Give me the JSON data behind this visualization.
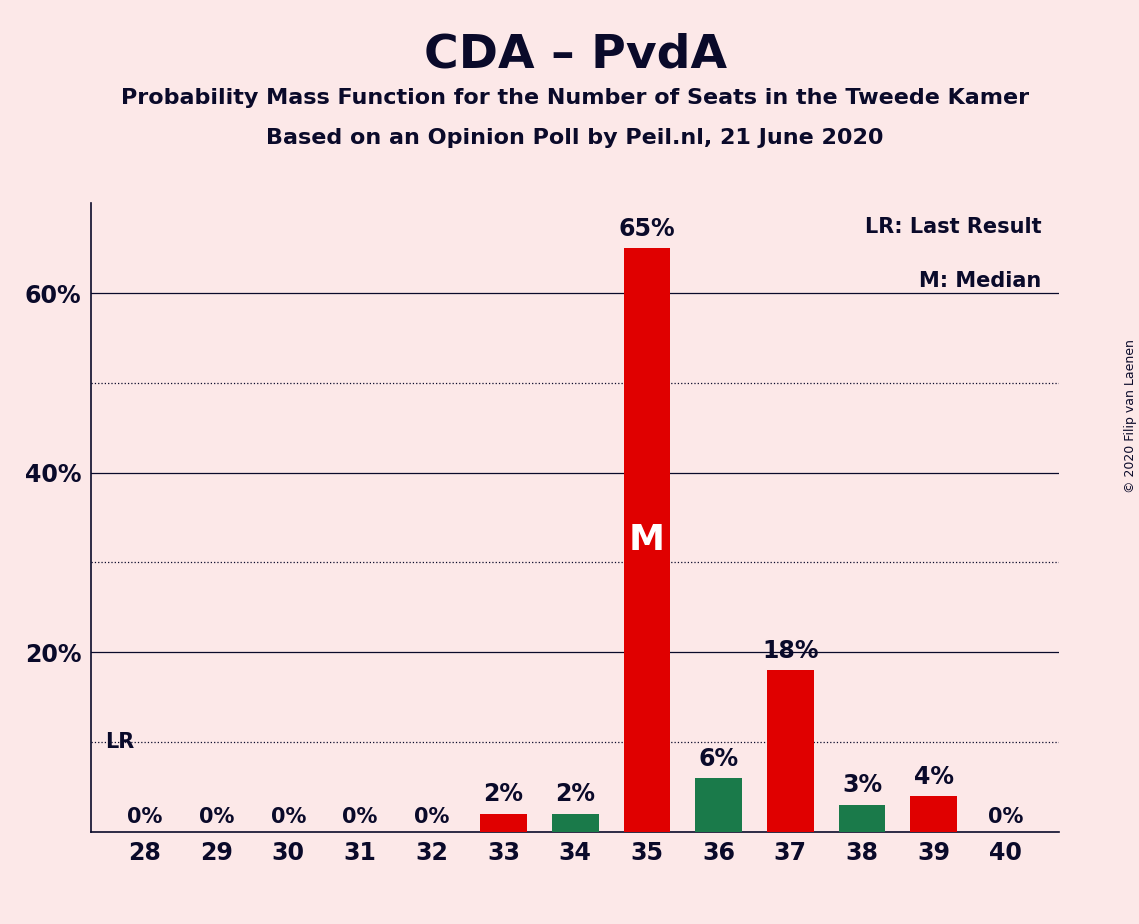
{
  "title": "CDA – PvdA",
  "subtitle1": "Probability Mass Function for the Number of Seats in the Tweede Kamer",
  "subtitle2": "Based on an Opinion Poll by Peil.nl, 21 June 2020",
  "copyright": "© 2020 Filip van Laenen",
  "background_color": "#fce8e8",
  "categories": [
    28,
    29,
    30,
    31,
    32,
    33,
    34,
    35,
    36,
    37,
    38,
    39,
    40
  ],
  "values": [
    0,
    0,
    0,
    0,
    0,
    2,
    2,
    65,
    6,
    18,
    3,
    4,
    0
  ],
  "bar_colors": [
    "#e00000",
    "#e00000",
    "#e00000",
    "#e00000",
    "#e00000",
    "#e00000",
    "#1a7a4a",
    "#e00000",
    "#1a7a4a",
    "#e00000",
    "#1a7a4a",
    "#e00000",
    "#e00000"
  ],
  "median_bar": 35,
  "lr_line": 10,
  "ylim_max": 70,
  "ytick_positions": [
    20,
    40,
    60
  ],
  "ytick_labels": [
    "20%",
    "40%",
    "60%"
  ],
  "solid_gridlines": [
    20,
    40,
    60
  ],
  "dotted_gridlines": [
    10,
    30,
    50
  ],
  "legend_text1": "LR: Last Result",
  "legend_text2": "M: Median",
  "text_color": "#0a0a2a",
  "bar_width": 0.65
}
